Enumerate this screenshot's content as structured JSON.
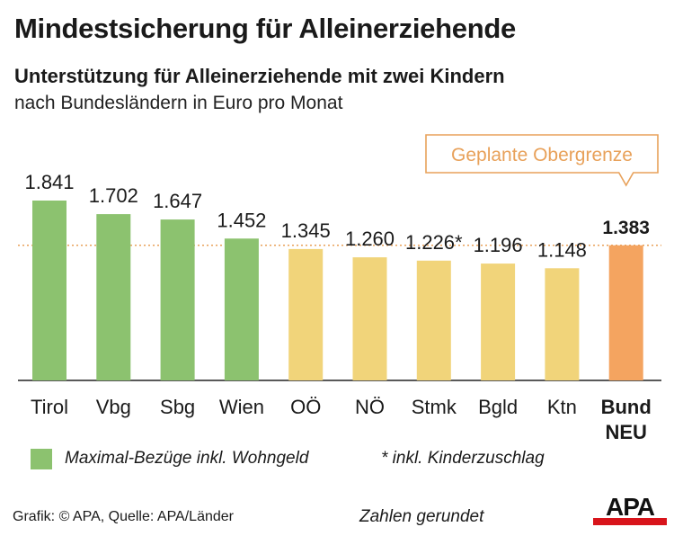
{
  "header": {
    "title": "Mindestsicherung für Alleinerziehende",
    "subtitle": "Unterstützung für Alleinerziehende mit zwei Kindern",
    "subtitle2": "nach Bundesländern in Euro pro Monat"
  },
  "chart_data": {
    "type": "bar",
    "categories": [
      "Tirol",
      "Vbg",
      "Sbg",
      "Wien",
      "OÖ",
      "NÖ",
      "Stmk",
      "Bgld",
      "Ktn",
      [
        "Bund",
        "NEU"
      ]
    ],
    "values": [
      1841,
      1702,
      1647,
      1452,
      1345,
      1260,
      1226,
      1196,
      1148,
      1383
    ],
    "value_labels": [
      "1.841",
      "1.702",
      "1.647",
      "1.452",
      "1.345",
      "1.260",
      "1.226*",
      "1.196",
      "1.148",
      "1.383"
    ],
    "bar_colors": [
      "#8cc26f",
      "#8cc26f",
      "#8cc26f",
      "#8cc26f",
      "#f1d47a",
      "#f1d47a",
      "#f1d47a",
      "#f1d47a",
      "#f1d47a",
      "#f4a460"
    ],
    "ylim": [
      0,
      1950
    ],
    "reference_line": {
      "value": 1383,
      "label": "Geplante Obergrenze",
      "color": "#e8a15a"
    },
    "grid": false,
    "legend": {
      "label": "Maximal-Bezüge inkl. Wohngeld",
      "color": "#8cc26f",
      "placement": "bottom-left"
    },
    "note": "* inkl. Kinderzuschlag"
  },
  "footer": {
    "source": "Grafik: © APA, Quelle: APA/Länder",
    "rounded": "Zahlen gerundet",
    "logo_text": "APA"
  },
  "colors": {
    "green": "#8cc26f",
    "yellow": "#f1d47a",
    "orange": "#f4a460",
    "callout": "#e8a15a",
    "logo_red": "#d8141b"
  }
}
